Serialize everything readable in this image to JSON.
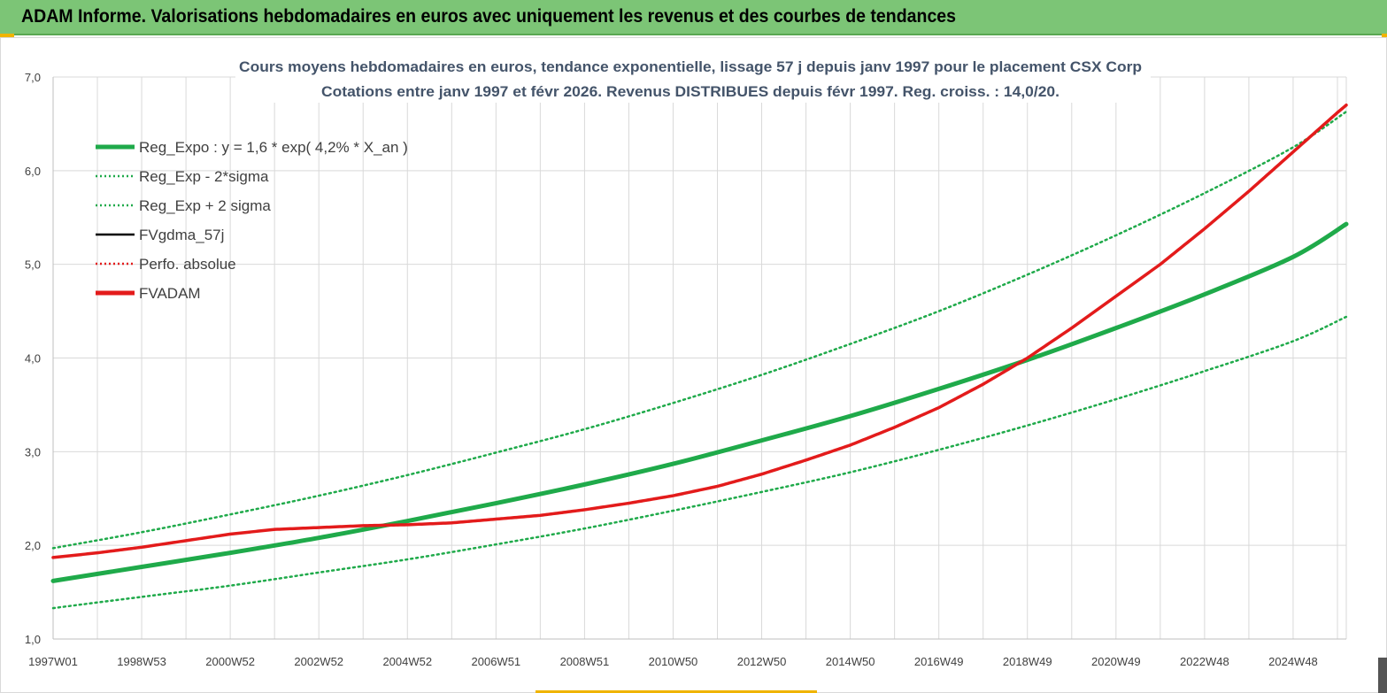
{
  "header": {
    "title": "ADAM Informe. Valorisations hebdomadaires en euros avec uniquement les revenus et des courbes de tendances"
  },
  "colors": {
    "banner": "#7cc576",
    "reg_expo": "#1faa4a",
    "fvadam": "#e31b1b",
    "fvgdma": "#000000",
    "perfo": "#e31b1b",
    "grid": "#d9d9d9"
  },
  "chart_data": {
    "type": "line",
    "title_line1": "Cours moyens hebdomadaires en euros, tendance exponentielle, lissage 57 j depuis janv 1997 pour le placement CSX Corp",
    "title_line2": "Cotations entre janv 1997 et févr 2026. Revenus DISTRIBUES depuis févr 1997. Reg. croiss. : 14,0/20.",
    "xlabel": "",
    "ylabel": "",
    "x_range": [
      1997.0,
      2026.2
    ],
    "ylim": [
      1.0,
      7.0
    ],
    "y_ticks": [
      "1,0",
      "2,0",
      "3,0",
      "4,0",
      "5,0",
      "6,0",
      "7,0"
    ],
    "y_tick_values": [
      1,
      2,
      3,
      4,
      5,
      6,
      7
    ],
    "x_ticks": [
      "1997W01",
      "1998W53",
      "2000W52",
      "2002W52",
      "2004W52",
      "2006W51",
      "2008W51",
      "2010W50",
      "2012W50",
      "2014W50",
      "2016W49",
      "2018W49",
      "2020W49",
      "2022W48",
      "2024W48"
    ],
    "x_tick_values": [
      1997.0,
      1999.0,
      2001.0,
      2003.0,
      2005.0,
      2007.0,
      2009.0,
      2011.0,
      2013.0,
      2015.0,
      2017.0,
      2019.0,
      2021.0,
      2023.0,
      2025.0
    ],
    "x_grid_step_years": 1.0,
    "grid": true,
    "legend_position": "top-left",
    "legend": [
      {
        "label": "Reg_Expo : y = 1,6 * exp( 4,2% *  X_an )",
        "style": "solid-thick",
        "color": "#1faa4a"
      },
      {
        "label": "Reg_Exp - 2*sigma",
        "style": "dotted",
        "color": "#1faa4a"
      },
      {
        "label": "Reg_Exp + 2 sigma",
        "style": "dotted",
        "color": "#1faa4a"
      },
      {
        "label": "FVgdma_57j",
        "style": "solid",
        "color": "#000000"
      },
      {
        "label": "Perfo. absolue",
        "style": "dotted",
        "color": "#e31b1b"
      },
      {
        "label": "FVADAM",
        "style": "solid-thick",
        "color": "#e31b1b"
      }
    ],
    "series": [
      {
        "name": "Reg_Expo : y = 1,6 * exp( 4,2% *  X_an )",
        "x": [
          1997,
          1999,
          2001,
          2003,
          2005,
          2007,
          2009,
          2011,
          2013,
          2015,
          2017,
          2019,
          2021,
          2023,
          2025,
          2026.2
        ],
        "values": [
          1.62,
          1.77,
          1.92,
          2.08,
          2.26,
          2.45,
          2.65,
          2.87,
          3.12,
          3.38,
          3.67,
          3.98,
          4.32,
          4.68,
          5.08,
          5.43
        ]
      },
      {
        "name": "Reg_Exp - 2*sigma",
        "x": [
          1997,
          1999,
          2001,
          2003,
          2005,
          2007,
          2009,
          2011,
          2013,
          2015,
          2017,
          2019,
          2021,
          2023,
          2025,
          2026.2
        ],
        "values": [
          1.33,
          1.45,
          1.57,
          1.71,
          1.85,
          2.01,
          2.18,
          2.37,
          2.57,
          2.78,
          3.02,
          3.28,
          3.56,
          3.86,
          4.18,
          4.44
        ]
      },
      {
        "name": "Reg_Exp + 2 sigma",
        "x": [
          1997,
          1999,
          2001,
          2003,
          2005,
          2007,
          2009,
          2011,
          2013,
          2015,
          2017,
          2019,
          2021,
          2023,
          2025,
          2026.2
        ],
        "values": [
          1.97,
          2.14,
          2.33,
          2.53,
          2.75,
          2.99,
          3.24,
          3.52,
          3.82,
          4.15,
          4.5,
          4.89,
          5.31,
          5.76,
          6.25,
          6.63
        ]
      },
      {
        "name": "FVADAM",
        "x": [
          1997,
          1998,
          1999,
          2000,
          2001,
          2002,
          2003,
          2004,
          2005,
          2006,
          2007,
          2008,
          2009,
          2010,
          2011,
          2012,
          2013,
          2014,
          2015,
          2016,
          2017,
          2018,
          2019,
          2020,
          2021,
          2022,
          2023,
          2024,
          2025,
          2026,
          2026.2
        ],
        "values": [
          1.87,
          1.92,
          1.98,
          2.05,
          2.12,
          2.17,
          2.19,
          2.21,
          2.22,
          2.24,
          2.28,
          2.32,
          2.38,
          2.45,
          2.53,
          2.63,
          2.76,
          2.91,
          3.07,
          3.26,
          3.47,
          3.72,
          4.0,
          4.32,
          4.66,
          5.0,
          5.38,
          5.78,
          6.2,
          6.62,
          6.7
        ]
      }
    ]
  }
}
